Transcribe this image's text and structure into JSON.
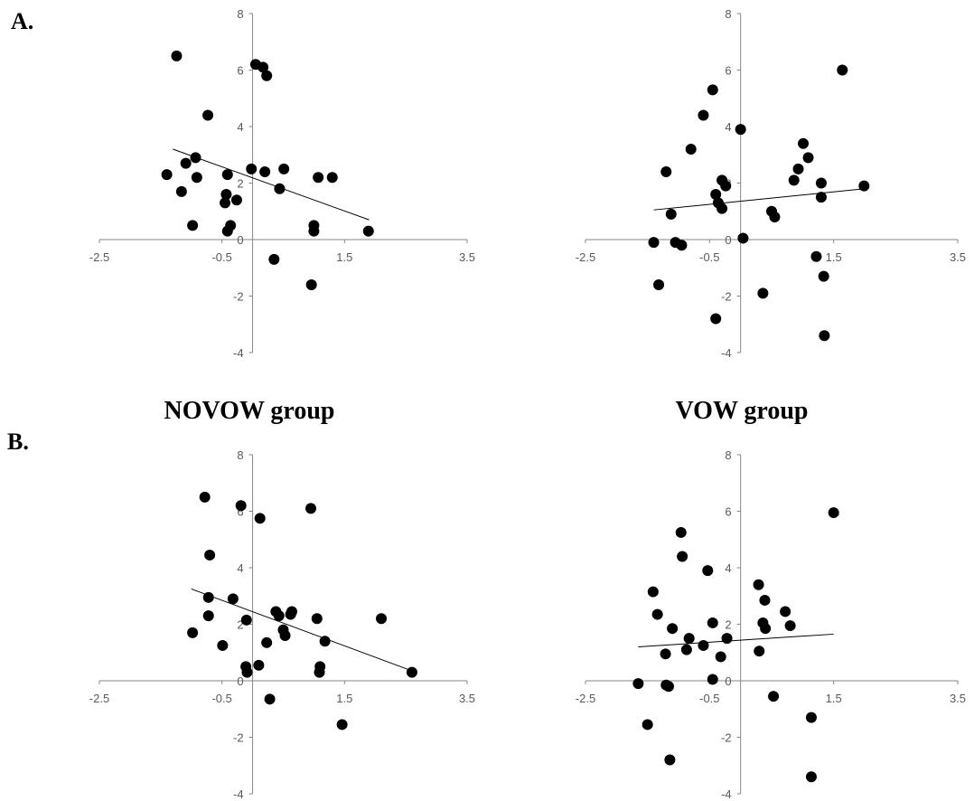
{
  "panels": {
    "a_label": "A.",
    "b_label": "B."
  },
  "groups": {
    "novow_title": "NOVOW group",
    "vow_title": "VOW group"
  },
  "chart_data": [
    {
      "type": "scatter",
      "panel": "A.",
      "group": "NOVOW group",
      "xlim": [
        -2.5,
        3.5
      ],
      "ylim": [
        -4,
        8
      ],
      "x_ticks": [
        "-2.5",
        "-0.5",
        "1.5",
        "3.5"
      ],
      "y_ticks": [
        "-4",
        "-2",
        "0",
        "2",
        "4",
        "6",
        "8"
      ],
      "trendline": {
        "x": [
          -1.3,
          1.9
        ],
        "y": [
          3.2,
          0.7
        ]
      },
      "points": [
        {
          "x": -1.24,
          "y": 6.5
        },
        {
          "x": 0.05,
          "y": 6.2
        },
        {
          "x": 0.17,
          "y": 6.1
        },
        {
          "x": 0.23,
          "y": 5.8
        },
        {
          "x": -0.73,
          "y": 4.4
        },
        {
          "x": -0.93,
          "y": 2.9
        },
        {
          "x": -1.09,
          "y": 2.7
        },
        {
          "x": -1.4,
          "y": 2.3
        },
        {
          "x": -0.41,
          "y": 2.3
        },
        {
          "x": -0.02,
          "y": 2.5
        },
        {
          "x": 0.2,
          "y": 2.4
        },
        {
          "x": 0.51,
          "y": 2.5
        },
        {
          "x": 1.07,
          "y": 2.2
        },
        {
          "x": 1.3,
          "y": 2.2
        },
        {
          "x": -0.91,
          "y": 2.2
        },
        {
          "x": -1.16,
          "y": 1.7
        },
        {
          "x": -0.43,
          "y": 1.6
        },
        {
          "x": -0.45,
          "y": 1.3
        },
        {
          "x": -0.26,
          "y": 1.4
        },
        {
          "x": 0.44,
          "y": 1.8
        },
        {
          "x": -0.98,
          "y": 0.5
        },
        {
          "x": -0.36,
          "y": 0.5
        },
        {
          "x": -0.41,
          "y": 0.3
        },
        {
          "x": 1.0,
          "y": 0.5
        },
        {
          "x": 1.0,
          "y": 0.3
        },
        {
          "x": 1.89,
          "y": 0.3
        },
        {
          "x": 0.35,
          "y": -0.7
        },
        {
          "x": 0.96,
          "y": -1.6
        }
      ]
    },
    {
      "type": "scatter",
      "panel": "A.",
      "group": "VOW group",
      "xlim": [
        -2.5,
        3.5
      ],
      "ylim": [
        -4,
        8
      ],
      "x_ticks": [
        "-2.5",
        "-0.5",
        "1.5",
        "3.5"
      ],
      "y_ticks": [
        "-4",
        "-2",
        "0",
        "2",
        "4",
        "6",
        "8"
      ],
      "trendline": {
        "x": [
          -1.4,
          2.0
        ],
        "y": [
          1.05,
          1.8
        ]
      },
      "points": [
        {
          "x": 1.64,
          "y": 6.0
        },
        {
          "x": -0.45,
          "y": 5.3
        },
        {
          "x": -0.6,
          "y": 4.4
        },
        {
          "x": 0.0,
          "y": 3.9
        },
        {
          "x": 1.01,
          "y": 3.4
        },
        {
          "x": -0.8,
          "y": 3.2
        },
        {
          "x": 1.09,
          "y": 2.9
        },
        {
          "x": 0.93,
          "y": 2.5
        },
        {
          "x": -1.2,
          "y": 2.4
        },
        {
          "x": 0.86,
          "y": 2.1
        },
        {
          "x": -0.3,
          "y": 2.1
        },
        {
          "x": -0.24,
          "y": 1.9
        },
        {
          "x": 1.3,
          "y": 2.0
        },
        {
          "x": 1.99,
          "y": 1.9
        },
        {
          "x": -0.4,
          "y": 1.6
        },
        {
          "x": 1.3,
          "y": 1.5
        },
        {
          "x": -0.36,
          "y": 1.3
        },
        {
          "x": -0.3,
          "y": 1.1
        },
        {
          "x": 0.5,
          "y": 1.0
        },
        {
          "x": -1.12,
          "y": 0.9
        },
        {
          "x": 0.55,
          "y": 0.8
        },
        {
          "x": 0.04,
          "y": 0.05
        },
        {
          "x": -1.4,
          "y": -0.1
        },
        {
          "x": -1.05,
          "y": -0.1
        },
        {
          "x": -0.95,
          "y": -0.2
        },
        {
          "x": 1.22,
          "y": -0.6
        },
        {
          "x": 1.34,
          "y": -1.3
        },
        {
          "x": -1.32,
          "y": -1.6
        },
        {
          "x": 0.36,
          "y": -1.9
        },
        {
          "x": -0.4,
          "y": -2.8
        },
        {
          "x": 1.35,
          "y": -3.4
        }
      ]
    },
    {
      "type": "scatter",
      "panel": "B.",
      "group": "NOVOW group",
      "xlim": [
        -2.5,
        3.5
      ],
      "ylim": [
        -4,
        8
      ],
      "x_ticks": [
        "-2.5",
        "-0.5",
        "1.5",
        "3.5"
      ],
      "y_ticks": [
        "-4",
        "-2",
        "0",
        "2",
        "4",
        "6",
        "8"
      ],
      "trendline": {
        "x": [
          -1.0,
          2.6
        ],
        "y": [
          3.25,
          0.35
        ]
      },
      "points": [
        {
          "x": -0.78,
          "y": 6.5
        },
        {
          "x": -0.19,
          "y": 6.2
        },
        {
          "x": 0.95,
          "y": 6.1
        },
        {
          "x": 0.12,
          "y": 5.75
        },
        {
          "x": -0.7,
          "y": 4.45
        },
        {
          "x": -0.72,
          "y": 2.95
        },
        {
          "x": -0.32,
          "y": 2.9
        },
        {
          "x": -0.72,
          "y": 2.3
        },
        {
          "x": -0.1,
          "y": 2.15
        },
        {
          "x": 0.38,
          "y": 2.45
        },
        {
          "x": 0.43,
          "y": 2.3
        },
        {
          "x": 0.64,
          "y": 2.45
        },
        {
          "x": 0.62,
          "y": 2.35
        },
        {
          "x": 1.05,
          "y": 2.2
        },
        {
          "x": 2.1,
          "y": 2.2
        },
        {
          "x": -0.98,
          "y": 1.7
        },
        {
          "x": 0.5,
          "y": 1.8
        },
        {
          "x": 0.53,
          "y": 1.6
        },
        {
          "x": 0.23,
          "y": 1.35
        },
        {
          "x": 1.18,
          "y": 1.4
        },
        {
          "x": -0.49,
          "y": 1.25
        },
        {
          "x": -0.11,
          "y": 0.5
        },
        {
          "x": 0.1,
          "y": 0.55
        },
        {
          "x": -0.09,
          "y": 0.3
        },
        {
          "x": 1.1,
          "y": 0.5
        },
        {
          "x": 1.09,
          "y": 0.3
        },
        {
          "x": 2.6,
          "y": 0.3
        },
        {
          "x": 0.28,
          "y": -0.65
        },
        {
          "x": 1.46,
          "y": -1.55
        }
      ]
    },
    {
      "type": "scatter",
      "panel": "B.",
      "group": "VOW group",
      "xlim": [
        -2.5,
        3.5
      ],
      "ylim": [
        -4,
        8
      ],
      "x_ticks": [
        "-2.5",
        "-0.5",
        "1.5",
        "3.5"
      ],
      "y_ticks": [
        "-4",
        "-2",
        "0",
        "2",
        "4",
        "6",
        "8"
      ],
      "trendline": {
        "x": [
          -1.65,
          1.5
        ],
        "y": [
          1.2,
          1.65
        ]
      },
      "points": [
        {
          "x": 1.5,
          "y": 5.95
        },
        {
          "x": -0.96,
          "y": 5.25
        },
        {
          "x": -0.94,
          "y": 4.4
        },
        {
          "x": -0.53,
          "y": 3.9
        },
        {
          "x": 0.29,
          "y": 3.4
        },
        {
          "x": -1.41,
          "y": 3.15
        },
        {
          "x": 0.39,
          "y": 2.85
        },
        {
          "x": 0.72,
          "y": 2.45
        },
        {
          "x": -1.34,
          "y": 2.35
        },
        {
          "x": -0.45,
          "y": 2.05
        },
        {
          "x": 0.36,
          "y": 2.05
        },
        {
          "x": 0.4,
          "y": 1.85
        },
        {
          "x": 0.8,
          "y": 1.95
        },
        {
          "x": -1.1,
          "y": 1.85
        },
        {
          "x": -0.83,
          "y": 1.5
        },
        {
          "x": -0.22,
          "y": 1.5
        },
        {
          "x": -0.6,
          "y": 1.25
        },
        {
          "x": -0.87,
          "y": 1.1
        },
        {
          "x": 0.3,
          "y": 1.05
        },
        {
          "x": -1.21,
          "y": 0.95
        },
        {
          "x": -0.32,
          "y": 0.85
        },
        {
          "x": -0.45,
          "y": 0.05
        },
        {
          "x": -1.65,
          "y": -0.1
        },
        {
          "x": -1.2,
          "y": -0.15
        },
        {
          "x": -1.16,
          "y": -0.2
        },
        {
          "x": 0.53,
          "y": -0.55
        },
        {
          "x": 1.14,
          "y": -1.3
        },
        {
          "x": -1.5,
          "y": -1.55
        },
        {
          "x": -1.14,
          "y": -2.8
        },
        {
          "x": 1.14,
          "y": -3.4
        }
      ]
    }
  ]
}
